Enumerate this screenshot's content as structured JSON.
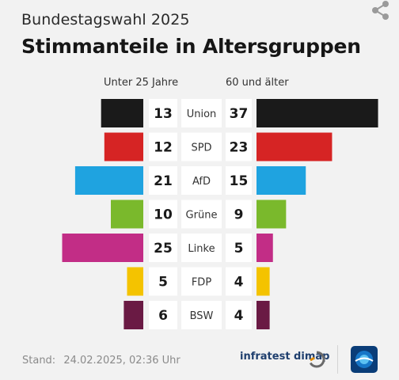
{
  "header": {
    "supertitle": "Bundestagswahl 2025",
    "title": "Stimmanteile in Altersgruppen"
  },
  "chart_data": {
    "type": "bar",
    "title": "Stimmanteile in Altersgruppen",
    "categories": [
      "Union",
      "SPD",
      "AfD",
      "Grüne",
      "Linke",
      "FDP",
      "BSW"
    ],
    "series": [
      {
        "name": "Unter 25 Jahre",
        "values": [
          13,
          12,
          21,
          10,
          25,
          5,
          6
        ]
      },
      {
        "name": "60 und älter",
        "values": [
          37,
          23,
          15,
          9,
          5,
          4,
          4
        ]
      }
    ],
    "colors": [
      "#1a1a1a",
      "#d62424",
      "#1fa3e0",
      "#7ab92c",
      "#c22d86",
      "#f4c300",
      "#6a1a44"
    ]
  },
  "footer": {
    "stand_label": "Stand:",
    "stand_value": "24.02.2025, 02:36 Uhr",
    "source": "infratest dimap"
  },
  "icons": {
    "share": "share-icon",
    "source_logo": "infratest-dimap-logo-icon",
    "broadcaster_logo": "tagesschau-logo-icon"
  }
}
